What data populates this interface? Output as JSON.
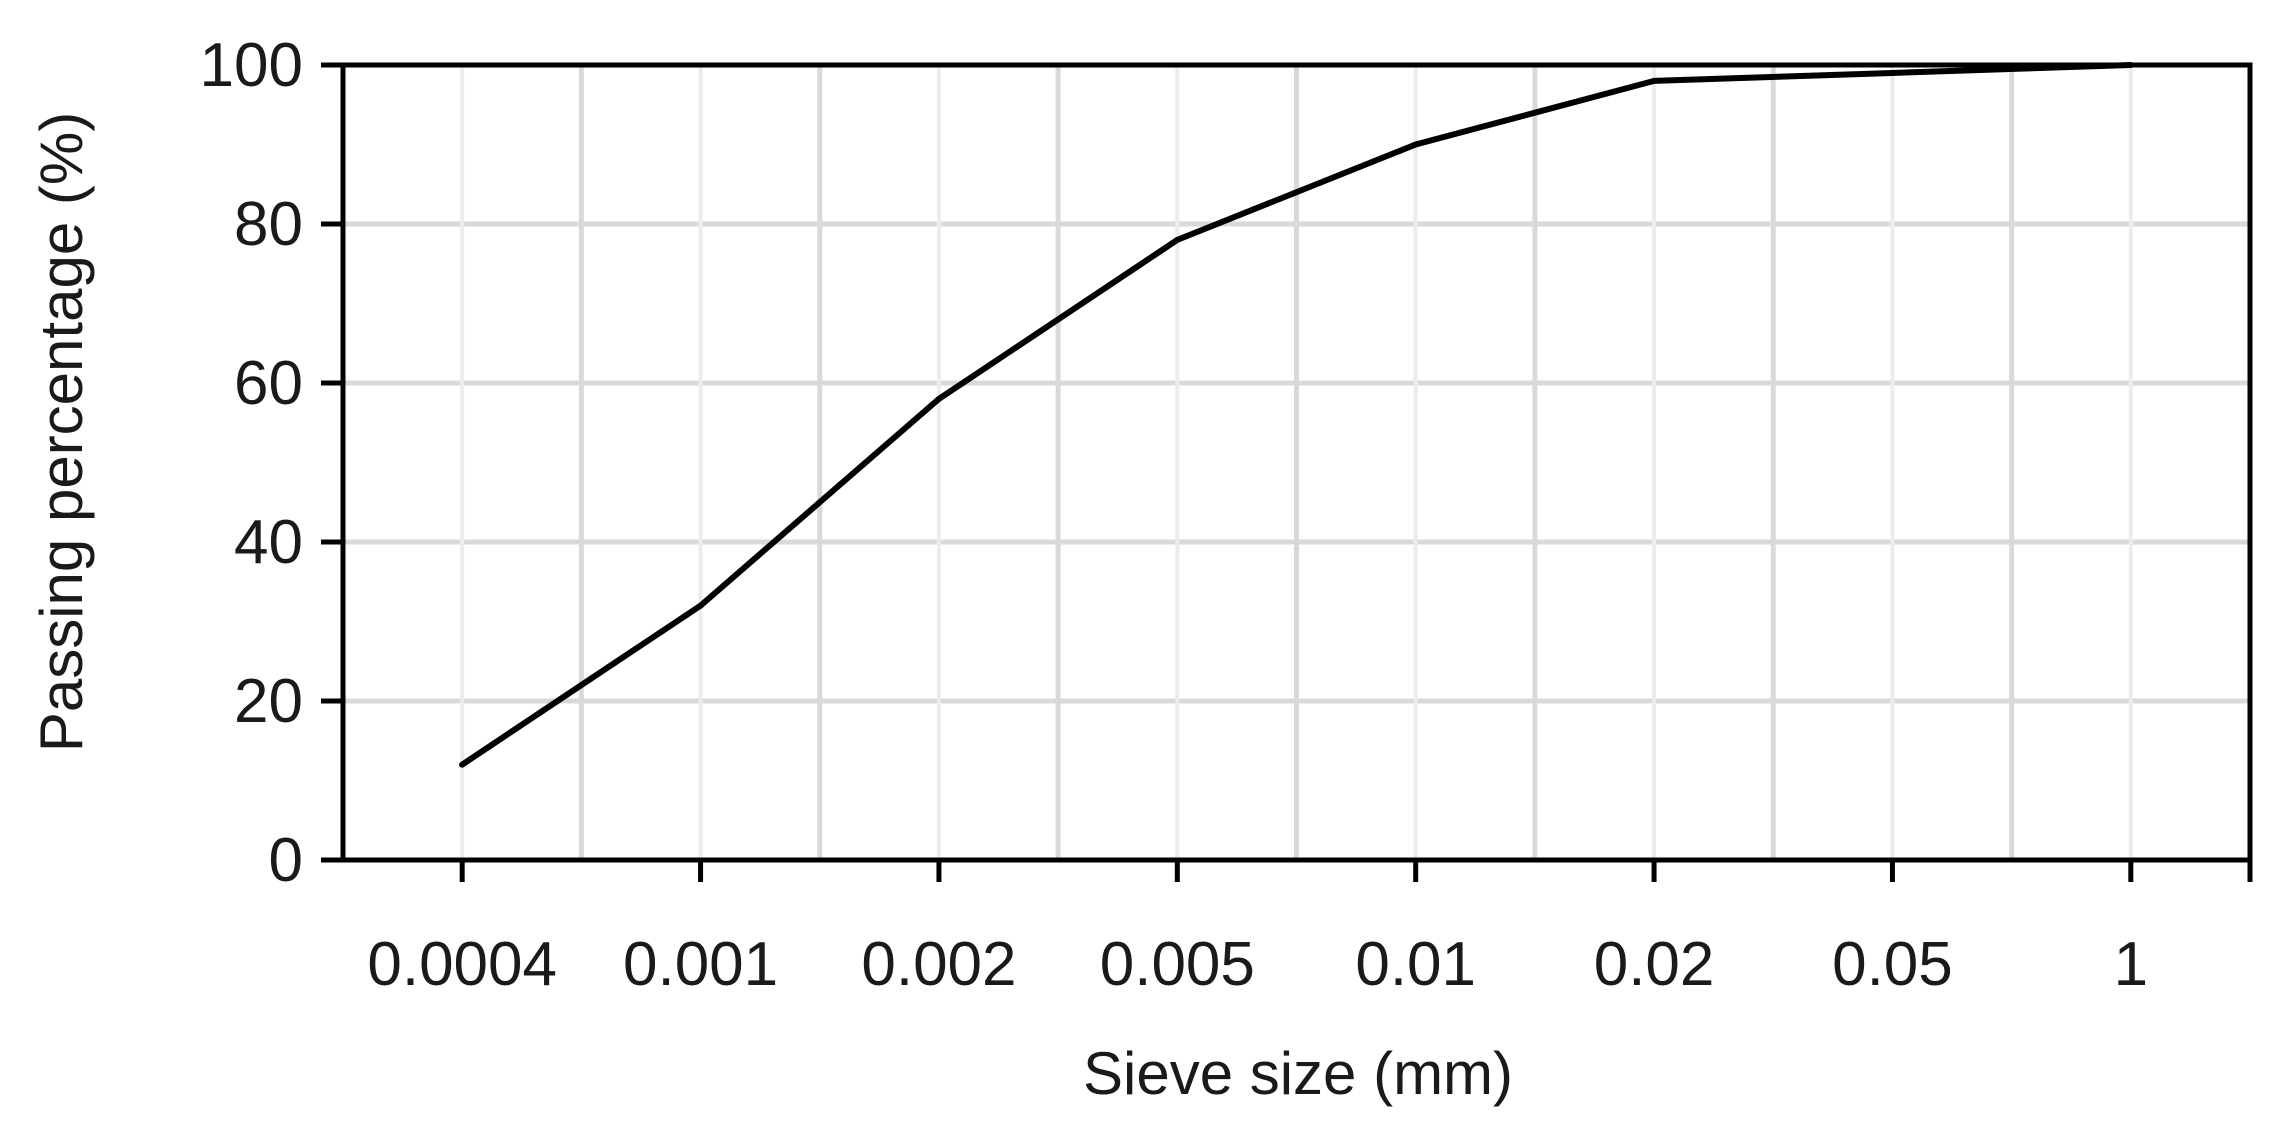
{
  "chart_data": {
    "type": "line",
    "title": "",
    "xlabel": "Sieve size (mm)",
    "ylabel": "Passing percentage (%)",
    "categories": [
      "0.0004",
      "0.001",
      "0.002",
      "0.005",
      "0.01",
      "0.02",
      "0.05",
      "1"
    ],
    "series": [
      {
        "values": [
          12,
          32,
          58,
          78,
          90,
          98,
          99,
          100
        ],
        "color": "#000000"
      }
    ],
    "ylim": [
      0,
      100
    ],
    "yticks": [
      0,
      20,
      40,
      60,
      80,
      100
    ],
    "grid": true,
    "legend": "none"
  }
}
